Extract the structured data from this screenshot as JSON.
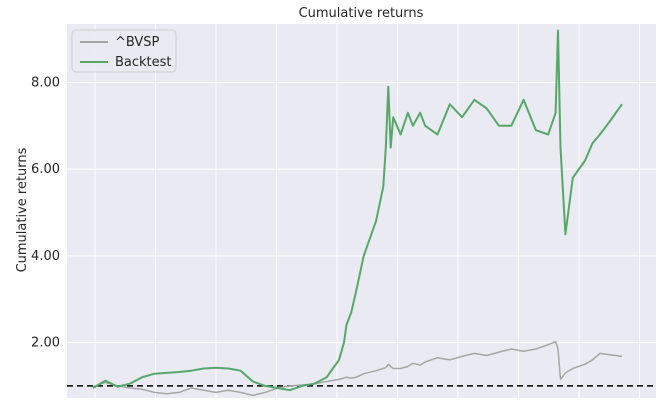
{
  "chart_data": {
    "type": "line",
    "title": "Cumulative returns",
    "xlabel": "",
    "ylabel": "Cumulative returns",
    "ylim": [
      0.72,
      9.35
    ],
    "yticks": [
      2.0,
      4.0,
      6.0,
      8.0
    ],
    "ytick_labels": [
      "2.00",
      "4.00",
      "6.00",
      "8.00"
    ],
    "x_tick_count": 10,
    "grid": true,
    "background": "#eaeaf2",
    "legend": {
      "placement": "top-left"
    },
    "reference_line": {
      "y": 1.0,
      "style": "dashed",
      "color": "#000000"
    },
    "x": [
      0,
      5,
      10,
      15,
      20,
      25,
      30,
      35,
      40,
      45,
      50,
      55,
      60,
      65,
      70,
      75,
      80,
      85,
      90,
      95,
      100,
      102,
      103,
      105,
      107,
      110,
      115,
      118,
      119,
      120,
      121,
      122,
      125,
      128,
      130,
      133,
      135,
      140,
      145,
      150,
      155,
      160,
      165,
      170,
      175,
      180,
      185,
      188,
      189,
      190,
      192,
      195,
      200,
      203,
      206,
      210,
      215
    ],
    "series": [
      {
        "name": "^BVSP",
        "color": "#a6a6a6",
        "values": [
          0.98,
          1.08,
          1.0,
          0.95,
          0.92,
          0.85,
          0.82,
          0.85,
          0.95,
          0.9,
          0.85,
          0.9,
          0.85,
          0.78,
          0.85,
          0.95,
          1.0,
          1.02,
          1.05,
          1.1,
          1.15,
          1.18,
          1.2,
          1.18,
          1.2,
          1.28,
          1.35,
          1.4,
          1.42,
          1.5,
          1.45,
          1.4,
          1.4,
          1.45,
          1.52,
          1.48,
          1.55,
          1.65,
          1.6,
          1.68,
          1.75,
          1.7,
          1.78,
          1.85,
          1.8,
          1.85,
          1.95,
          2.02,
          1.85,
          1.15,
          1.3,
          1.4,
          1.5,
          1.6,
          1.75,
          1.72,
          1.68
        ]
      },
      {
        "name": "Backtest",
        "color": "#55a868",
        "values": [
          0.95,
          1.12,
          0.98,
          1.05,
          1.2,
          1.28,
          1.3,
          1.32,
          1.35,
          1.4,
          1.42,
          1.4,
          1.35,
          1.1,
          1.0,
          0.95,
          0.9,
          1.0,
          1.05,
          1.2,
          1.6,
          2.0,
          2.4,
          2.7,
          3.2,
          4.0,
          4.8,
          5.6,
          6.5,
          7.9,
          6.5,
          7.2,
          6.8,
          7.3,
          7.0,
          7.3,
          7.0,
          6.8,
          7.5,
          7.2,
          7.6,
          7.4,
          7.0,
          7.0,
          7.6,
          6.9,
          6.8,
          7.3,
          9.2,
          6.5,
          4.5,
          5.8,
          6.2,
          6.6,
          6.8,
          7.1,
          7.5
        ]
      }
    ]
  }
}
